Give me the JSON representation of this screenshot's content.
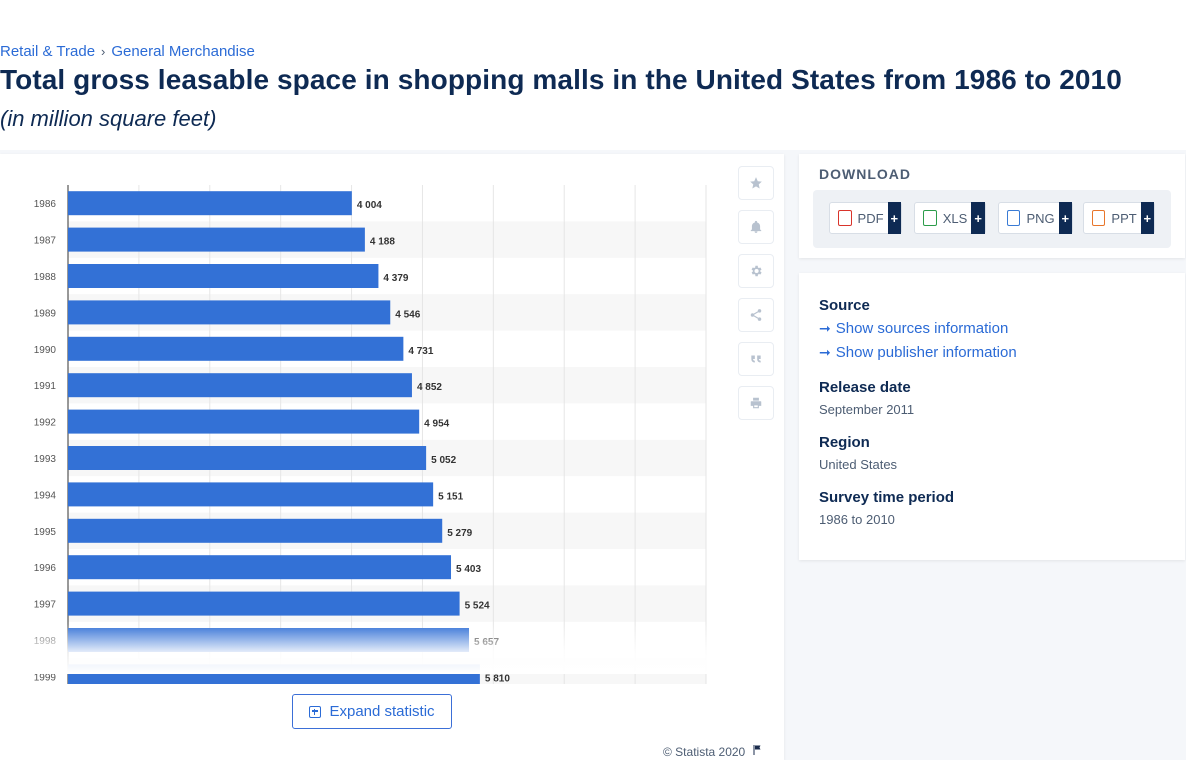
{
  "breadcrumb": {
    "item1": "Retail & Trade",
    "separator": "›",
    "item2": "General Merchandise"
  },
  "title": "Total gross leasable space in shopping malls in the United States from 1986 to 2010",
  "subtitle": "(in million square feet)",
  "chart_data": {
    "type": "bar",
    "orientation": "horizontal",
    "categories": [
      "1986",
      "1987",
      "1988",
      "1989",
      "1990",
      "1991",
      "1992",
      "1993",
      "1994",
      "1995",
      "1996",
      "1997",
      "1998",
      "1999"
    ],
    "values": [
      4004,
      4188,
      4379,
      4546,
      4731,
      4852,
      4954,
      5052,
      5151,
      5279,
      5403,
      5524,
      5657,
      5810
    ],
    "value_labels": [
      "4 004",
      "4 188",
      "4 379",
      "4 546",
      "4 731",
      "4 852",
      "4 954",
      "5 052",
      "5 151",
      "5 279",
      "5 403",
      "5 524",
      "5 657",
      "5 810"
    ],
    "xlim": [
      0,
      9000
    ],
    "grid": true,
    "bar_color": "#3371d6"
  },
  "chart": {
    "expand_label": "Expand statistic",
    "copyright": "© Statista 2020",
    "tools": [
      "star-icon",
      "bell-icon",
      "gear-icon",
      "share-icon",
      "quote-icon",
      "print-icon"
    ]
  },
  "download": {
    "title": "DOWNLOAD",
    "buttons": [
      {
        "label": "PDF",
        "plus": "+",
        "color": "#d9342b"
      },
      {
        "label": "XLS",
        "plus": "+",
        "color": "#2c9c4a"
      },
      {
        "label": "PNG",
        "plus": "+",
        "color": "#3a7bd5"
      },
      {
        "label": "PPT",
        "plus": "+",
        "color": "#e8762b"
      }
    ]
  },
  "info": {
    "source_heading": "Source",
    "show_sources": "Show sources information",
    "show_publisher": "Show publisher information",
    "release_heading": "Release date",
    "release_value": "September 2011",
    "region_heading": "Region",
    "region_value": "United States",
    "survey_heading": "Survey time period",
    "survey_value": "1986 to 2010"
  }
}
